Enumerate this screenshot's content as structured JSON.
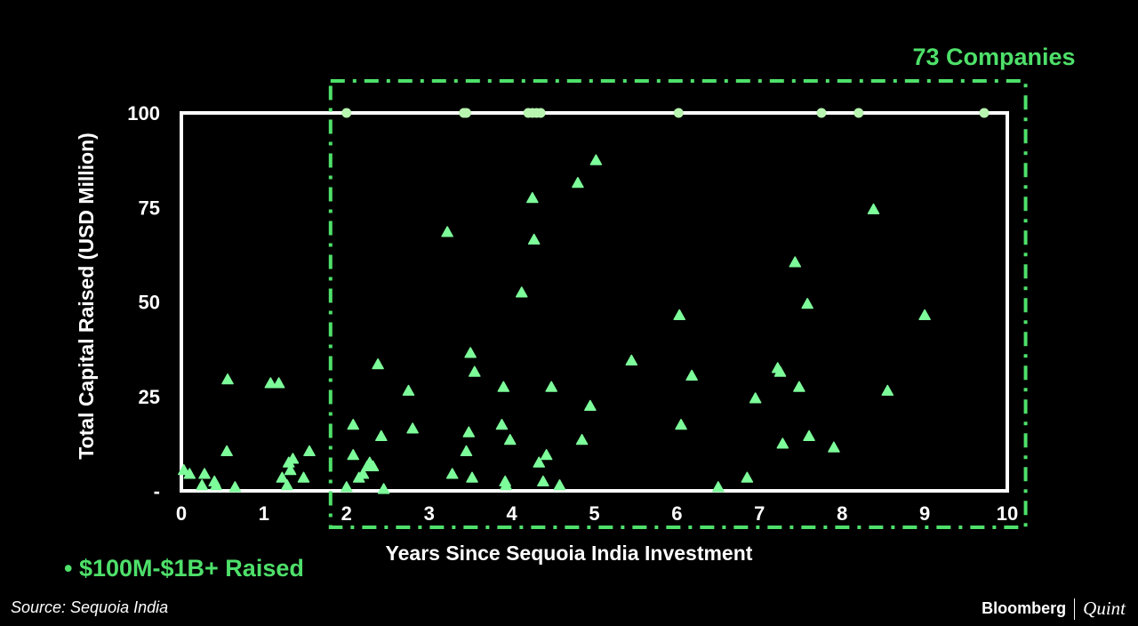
{
  "colors": {
    "accent": "#4ee06a",
    "point": "#7dfc9a",
    "capped_point": "#b8f5b0",
    "frame": "#ffffff",
    "background": "#000000"
  },
  "annotation": "73 Companies",
  "legend": "• $100M-$1B+ Raised",
  "source": "Source: Sequoia India",
  "brand": {
    "name1": "Bloomberg",
    "name2": "Quint"
  },
  "chart_data": {
    "type": "scatter",
    "xlabel": "Years Since Sequoia India Investment",
    "ylabel": "Total Capital Raised (USD Million)",
    "xlim": [
      0,
      10
    ],
    "ylim": [
      0,
      100
    ],
    "x_ticks": [
      "0",
      "1",
      "2",
      "3",
      "4",
      "5",
      "6",
      "7",
      "8",
      "9",
      "10"
    ],
    "y_ticks": [
      {
        "v": 100,
        "label": "100"
      },
      {
        "v": 75,
        "label": "75"
      },
      {
        "v": 50,
        "label": "50"
      },
      {
        "v": 25,
        "label": "25"
      },
      {
        "v": 0,
        "label": "-"
      }
    ],
    "highlight_region_x": [
      2,
      10.2
    ],
    "points": [
      [
        0.03,
        5
      ],
      [
        0.1,
        4
      ],
      [
        0.25,
        1
      ],
      [
        0.28,
        4
      ],
      [
        0.4,
        2
      ],
      [
        0.42,
        1
      ],
      [
        0.55,
        10
      ],
      [
        0.56,
        29
      ],
      [
        0.65,
        0.5
      ],
      [
        1.08,
        28
      ],
      [
        1.18,
        28
      ],
      [
        1.22,
        3
      ],
      [
        1.28,
        1
      ],
      [
        1.3,
        7
      ],
      [
        1.32,
        5
      ],
      [
        1.35,
        8
      ],
      [
        1.48,
        3
      ],
      [
        1.55,
        10
      ],
      [
        2.0,
        0.5
      ],
      [
        2.08,
        17
      ],
      [
        2.08,
        9
      ],
      [
        2.15,
        3
      ],
      [
        2.2,
        4
      ],
      [
        2.25,
        6
      ],
      [
        2.28,
        7
      ],
      [
        2.32,
        6
      ],
      [
        2.38,
        33
      ],
      [
        2.42,
        14
      ],
      [
        2.45,
        0
      ],
      [
        2.75,
        26
      ],
      [
        2.8,
        16
      ],
      [
        3.22,
        68
      ],
      [
        3.28,
        4
      ],
      [
        3.45,
        10
      ],
      [
        3.48,
        15
      ],
      [
        3.5,
        36
      ],
      [
        3.52,
        3
      ],
      [
        3.55,
        31
      ],
      [
        3.88,
        17
      ],
      [
        3.9,
        27
      ],
      [
        3.92,
        2
      ],
      [
        3.93,
        1
      ],
      [
        3.98,
        13
      ],
      [
        4.12,
        52
      ],
      [
        4.25,
        77
      ],
      [
        4.27,
        66
      ],
      [
        4.33,
        7
      ],
      [
        4.38,
        2
      ],
      [
        4.42,
        9
      ],
      [
        4.48,
        27
      ],
      [
        4.58,
        1
      ],
      [
        4.8,
        81
      ],
      [
        4.85,
        13
      ],
      [
        4.95,
        22
      ],
      [
        5.02,
        87
      ],
      [
        5.45,
        34
      ],
      [
        6.03,
        46
      ],
      [
        6.05,
        17
      ],
      [
        6.18,
        30
      ],
      [
        6.5,
        0.5
      ],
      [
        6.85,
        3
      ],
      [
        6.95,
        24
      ],
      [
        7.22,
        32
      ],
      [
        7.25,
        31
      ],
      [
        7.28,
        12
      ],
      [
        7.43,
        60
      ],
      [
        7.48,
        27
      ],
      [
        7.58,
        49
      ],
      [
        7.6,
        14
      ],
      [
        7.9,
        11
      ],
      [
        8.38,
        74
      ],
      [
        8.55,
        26
      ],
      [
        9.0,
        46
      ]
    ],
    "capped_points": [
      [
        2.0,
        100
      ],
      [
        3.42,
        100
      ],
      [
        3.45,
        100
      ],
      [
        4.2,
        100
      ],
      [
        4.25,
        100
      ],
      [
        4.3,
        100
      ],
      [
        4.35,
        100
      ],
      [
        6.02,
        100
      ],
      [
        7.75,
        100
      ],
      [
        8.2,
        100
      ],
      [
        9.72,
        100
      ]
    ]
  }
}
